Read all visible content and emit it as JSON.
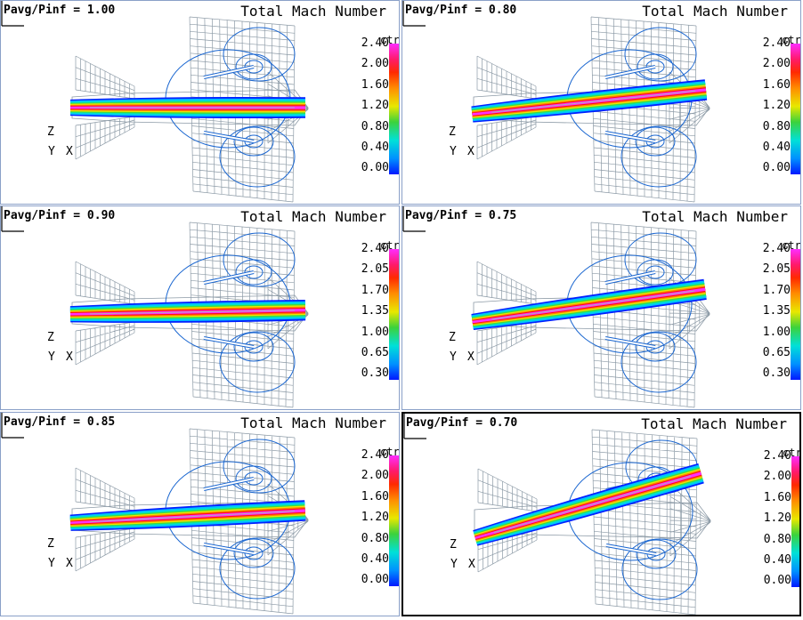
{
  "panels": [
    {
      "ratio": "Pavg/Pinf = 1.00",
      "title": "Total Mach Number",
      "ctr": "ctr",
      "ticks": [
        "2.40",
        "2.00",
        "1.60",
        "1.20",
        "0.80",
        "0.40",
        "0.00"
      ],
      "tilt": 0,
      "selected": false
    },
    {
      "ratio": "Pavg/Pinf = 0.80",
      "title": "Total Mach Number",
      "ctr": "ctr",
      "ticks": [
        "2.40",
        "2.00",
        "1.60",
        "1.20",
        "0.80",
        "0.40",
        "0.00"
      ],
      "tilt": -6,
      "selected": false
    },
    {
      "ratio": "Pavg/Pinf = 0.90",
      "title": "Total Mach Number",
      "ctr": "ctr",
      "ticks": [
        "2.40",
        "2.05",
        "1.70",
        "1.35",
        "1.00",
        "0.65",
        "0.30"
      ],
      "tilt": -1,
      "selected": false
    },
    {
      "ratio": "Pavg/Pinf = 0.75",
      "title": "Total Mach Number",
      "ctr": "ctr",
      "ticks": [
        "2.40",
        "2.05",
        "1.70",
        "1.35",
        "1.00",
        "0.65",
        "0.30"
      ],
      "tilt": -8,
      "selected": false
    },
    {
      "ratio": "Pavg/Pinf = 0.85",
      "title": "Total Mach Number",
      "ctr": "ctr",
      "ticks": [
        "2.40",
        "2.00",
        "1.60",
        "1.20",
        "0.80",
        "0.40",
        "0.00"
      ],
      "tilt": -3,
      "selected": false
    },
    {
      "ratio": "Pavg/Pinf = 0.70",
      "title": "Total Mach Number",
      "ctr": "ctr",
      "ticks": [
        "2.40",
        "2.00",
        "1.60",
        "1.20",
        "0.80",
        "0.40",
        "0.00"
      ],
      "tilt": -16,
      "selected": true
    }
  ],
  "axes": {
    "z": "Z",
    "y": "Y",
    "x": "X"
  },
  "colors": {
    "mesh": "#8c9aa6",
    "contour": "#1a66d0",
    "border": "#8aa0c8"
  }
}
